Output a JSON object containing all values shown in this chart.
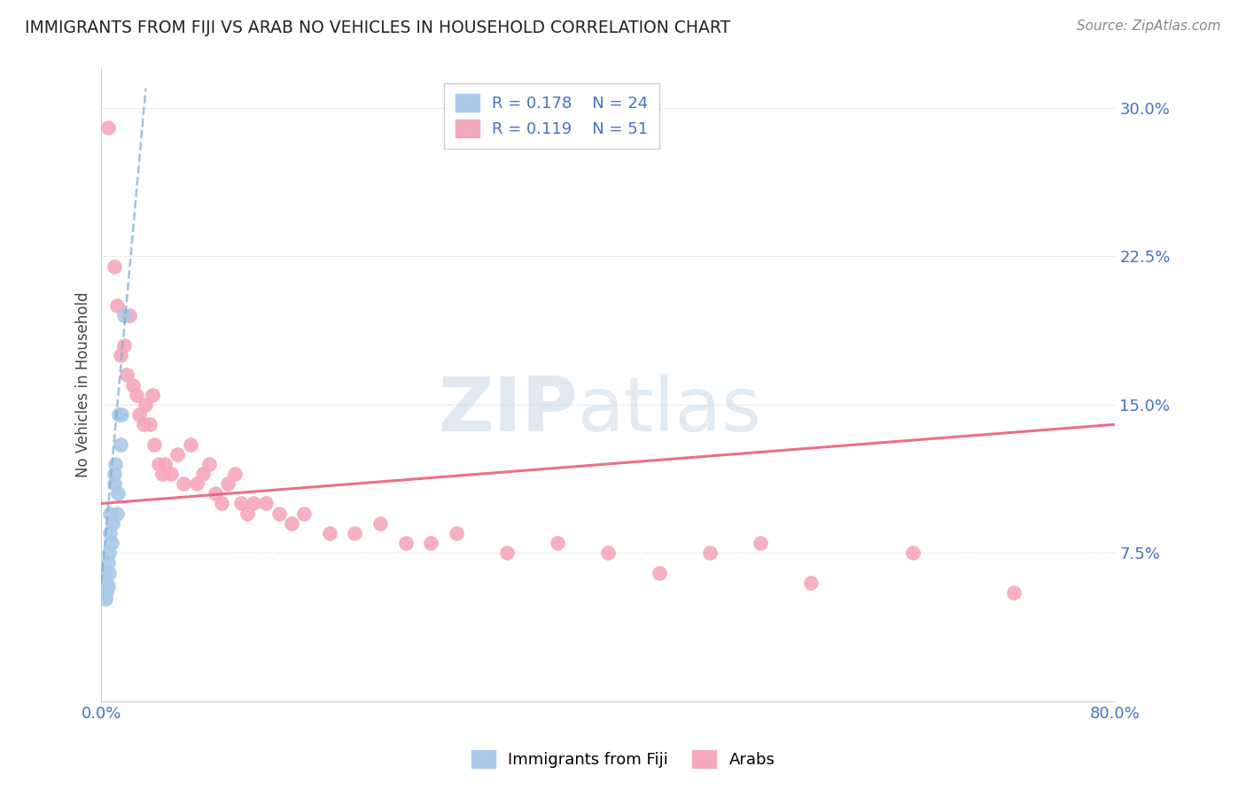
{
  "title": "IMMIGRANTS FROM FIJI VS ARAB NO VEHICLES IN HOUSEHOLD CORRELATION CHART",
  "source": "Source: ZipAtlas.com",
  "ylabel": "No Vehicles in Household",
  "xlim": [
    0.0,
    0.8
  ],
  "ylim": [
    0.0,
    0.32
  ],
  "yticks": [
    0.075,
    0.15,
    0.225,
    0.3
  ],
  "ytick_labels": [
    "7.5%",
    "15.0%",
    "22.5%",
    "30.0%"
  ],
  "xticks": [
    0.0,
    0.2,
    0.4,
    0.6,
    0.8
  ],
  "xtick_labels": [
    "0.0%",
    "",
    "",
    "",
    "80.0%"
  ],
  "legend_r_fiji": "R = 0.178",
  "legend_n_fiji": "N = 24",
  "legend_r_arab": "R = 0.119",
  "legend_n_arab": "N = 51",
  "fiji_color": "#aac8e8",
  "arab_color": "#f5a8bc",
  "fiji_trend_color": "#7aafd4",
  "arab_trend_color": "#e8607a",
  "watermark_zip": "ZIP",
  "watermark_atlas": "atlas",
  "fiji_x": [
    0.001,
    0.002,
    0.002,
    0.003,
    0.003,
    0.004,
    0.004,
    0.005,
    0.005,
    0.006,
    0.006,
    0.007,
    0.007,
    0.008,
    0.009,
    0.01,
    0.01,
    0.011,
    0.012,
    0.013,
    0.014,
    0.015,
    0.016,
    0.018
  ],
  "fiji_y": [
    0.06,
    0.055,
    0.065,
    0.058,
    0.052,
    0.06,
    0.055,
    0.07,
    0.058,
    0.065,
    0.075,
    0.095,
    0.085,
    0.08,
    0.09,
    0.11,
    0.115,
    0.12,
    0.095,
    0.105,
    0.145,
    0.13,
    0.145,
    0.195
  ],
  "arab_x": [
    0.005,
    0.01,
    0.012,
    0.015,
    0.018,
    0.02,
    0.022,
    0.025,
    0.028,
    0.03,
    0.033,
    0.035,
    0.038,
    0.04,
    0.042,
    0.045,
    0.048,
    0.05,
    0.055,
    0.06,
    0.065,
    0.07,
    0.075,
    0.08,
    0.085,
    0.09,
    0.095,
    0.1,
    0.105,
    0.11,
    0.115,
    0.12,
    0.13,
    0.14,
    0.15,
    0.16,
    0.18,
    0.2,
    0.22,
    0.24,
    0.26,
    0.28,
    0.32,
    0.36,
    0.4,
    0.44,
    0.48,
    0.52,
    0.56,
    0.64,
    0.72
  ],
  "arab_y": [
    0.29,
    0.22,
    0.2,
    0.175,
    0.18,
    0.165,
    0.195,
    0.16,
    0.155,
    0.145,
    0.14,
    0.15,
    0.14,
    0.155,
    0.13,
    0.12,
    0.115,
    0.12,
    0.115,
    0.125,
    0.11,
    0.13,
    0.11,
    0.115,
    0.12,
    0.105,
    0.1,
    0.11,
    0.115,
    0.1,
    0.095,
    0.1,
    0.1,
    0.095,
    0.09,
    0.095,
    0.085,
    0.085,
    0.09,
    0.08,
    0.08,
    0.085,
    0.075,
    0.08,
    0.075,
    0.065,
    0.075,
    0.08,
    0.06,
    0.075,
    0.055
  ],
  "fiji_trend_x": [
    0.0,
    0.035
  ],
  "fiji_trend_y_start": 0.06,
  "fiji_trend_y_end": 0.31,
  "arab_trend_x": [
    0.0,
    0.8
  ],
  "arab_trend_y_start": 0.1,
  "arab_trend_y_end": 0.14
}
